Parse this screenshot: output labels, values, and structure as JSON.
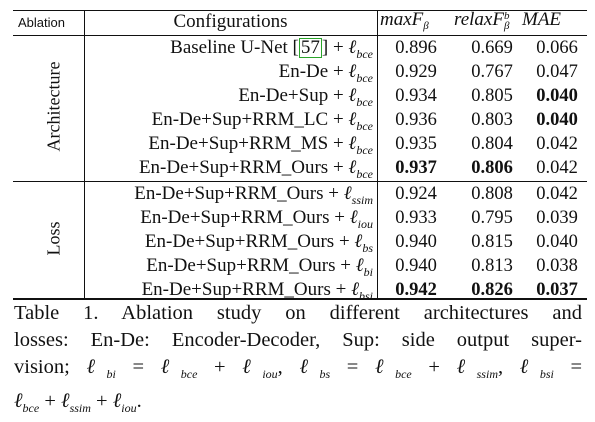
{
  "header": {
    "ablation": "Ablation",
    "configurations": "Configurations",
    "metrics": [
      {
        "base": "maxF",
        "sub": "β",
        "sup": ""
      },
      {
        "base": "relaxF",
        "sub": "β",
        "sup": "b"
      },
      {
        "base": "MAE",
        "sub": "",
        "sup": ""
      }
    ]
  },
  "groups": {
    "architecture": "Architecture",
    "loss": "Loss"
  },
  "rows": [
    {
      "pre": "Baseline U-Net ",
      "cite": "57",
      "post": " + ",
      "loss": "bce",
      "vals": [
        "0.896",
        "0.669",
        "0.066"
      ],
      "bold": [
        false,
        false,
        false
      ]
    },
    {
      "pre": "En-De + ",
      "cite": "",
      "post": "",
      "loss": "bce",
      "vals": [
        "0.929",
        "0.767",
        "0.047"
      ],
      "bold": [
        false,
        false,
        false
      ]
    },
    {
      "pre": "En-De+Sup + ",
      "cite": "",
      "post": "",
      "loss": "bce",
      "vals": [
        "0.934",
        "0.805",
        "0.040"
      ],
      "bold": [
        false,
        false,
        true
      ]
    },
    {
      "pre": "En-De+Sup+RRM_LC + ",
      "cite": "",
      "post": "",
      "loss": "bce",
      "vals": [
        "0.936",
        "0.803",
        "0.040"
      ],
      "bold": [
        false,
        false,
        true
      ]
    },
    {
      "pre": "En-De+Sup+RRM_MS + ",
      "cite": "",
      "post": "",
      "loss": "bce",
      "vals": [
        "0.935",
        "0.804",
        "0.042"
      ],
      "bold": [
        false,
        false,
        false
      ]
    },
    {
      "pre": "En-De+Sup+RRM_Ours + ",
      "cite": "",
      "post": "",
      "loss": "bce",
      "vals": [
        "0.937",
        "0.806",
        "0.042"
      ],
      "bold": [
        true,
        true,
        false
      ]
    },
    {
      "pre": "En-De+Sup+RRM_Ours + ",
      "cite": "",
      "post": "",
      "loss": "ssim",
      "vals": [
        "0.924",
        "0.808",
        "0.042"
      ],
      "bold": [
        false,
        false,
        false
      ]
    },
    {
      "pre": "En-De+Sup+RRM_Ours + ",
      "cite": "",
      "post": "",
      "loss": "iou",
      "vals": [
        "0.933",
        "0.795",
        "0.039"
      ],
      "bold": [
        false,
        false,
        false
      ]
    },
    {
      "pre": "En-De+Sup+RRM_Ours + ",
      "cite": "",
      "post": "",
      "loss": "bs",
      "vals": [
        "0.940",
        "0.815",
        "0.040"
      ],
      "bold": [
        false,
        false,
        false
      ]
    },
    {
      "pre": "En-De+Sup+RRM_Ours + ",
      "cite": "",
      "post": "",
      "loss": "bi",
      "vals": [
        "0.940",
        "0.813",
        "0.038"
      ],
      "bold": [
        false,
        false,
        false
      ]
    },
    {
      "pre": "En-De+Sup+RRM_Ours + ",
      "cite": "",
      "post": "",
      "loss": "bsi",
      "vals": [
        "0.942",
        "0.826",
        "0.037"
      ],
      "bold": [
        true,
        true,
        true
      ]
    }
  ],
  "caption": {
    "line1": "Table 1.  Ablation study on different architectures and",
    "line2": "losses: En-De: Encoder-Decoder, Sup: side output super-",
    "line3": "vision; ℓbi = ℓbce + ℓiou, ℓbs = ℓbce + ℓssim, ℓbsi =",
    "line4": "ℓbce + ℓssim + ℓiou."
  }
}
